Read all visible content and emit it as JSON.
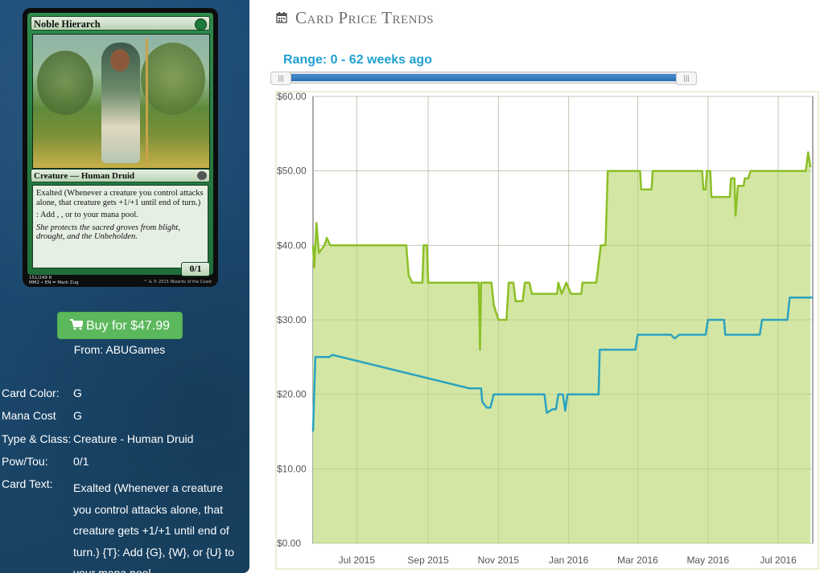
{
  "card": {
    "name": "Noble Hierarch",
    "type_line": "Creature — Human Druid",
    "rules_text": "Exalted (Whenever a creature you control attacks alone, that creature gets +1/+1 until end of turn.)",
    "mana_ability": ": Add , , or  to your mana pool.",
    "flavor": "She protects the sacred groves from blight, drought, and the Unbeholden.",
    "pt": "0/1",
    "collector_info": "151/249 R\nMM2 • EN ✒ Mark Zug",
    "copyright": "™ & © 2015 Wizards of the Coast"
  },
  "buy": {
    "label": "Buy for $47.99",
    "from": "From: ABUGames",
    "icon": "cart-icon"
  },
  "attributes": [
    {
      "label": "Card Color:",
      "value": "G"
    },
    {
      "label": "Mana Cost",
      "value": "G"
    },
    {
      "label": "Type & Class:",
      "value": "Creature - Human Druid"
    },
    {
      "label": "Pow/Tou:",
      "value": "0/1"
    },
    {
      "label": "Card Text:",
      "value": "Exalted (Whenever a creature you control attacks alone, that creature gets +1/+1 until end of turn.) {T}: Add {G}, {W}, or {U} to your mana pool."
    }
  ],
  "section_title": "Card Price Trends",
  "section_icon": "calendar-icon",
  "range_label": "Range: 0 - 62 weeks ago",
  "colors": {
    "sidebar": "#1c4a73",
    "button": "#5cb85c",
    "range": "#21a1d0",
    "green_series": "#8cbf26",
    "blue_series": "#2ba3bf"
  },
  "chart_data": {
    "type": "area",
    "x_ticks": [
      "Jul 2015",
      "Sep 2015",
      "Nov 2015",
      "Jan 2016",
      "Mar 2016",
      "May 2016",
      "Jul 2016"
    ],
    "y_ticks": [
      "$0.00",
      "$10.00",
      "$20.00",
      "$30.00",
      "$40.00",
      "$50.00",
      "$60.00"
    ],
    "ylim": [
      0,
      60
    ],
    "xlim": [
      "2015-05-24",
      "2016-07-31"
    ],
    "grid": true,
    "series": [
      {
        "color": "#8cbf26",
        "fill": true,
        "points": [
          [
            "2015-05-24",
            40
          ],
          [
            "2015-05-25",
            37
          ],
          [
            "2015-05-27",
            43
          ],
          [
            "2015-05-29",
            39
          ],
          [
            "2015-06-03",
            40
          ],
          [
            "2015-06-05",
            41
          ],
          [
            "2015-06-08",
            40
          ],
          [
            "2015-08-13",
            40
          ],
          [
            "2015-08-15",
            36
          ],
          [
            "2015-08-18",
            35
          ],
          [
            "2015-08-27",
            35
          ],
          [
            "2015-08-28",
            40
          ],
          [
            "2015-08-31",
            40
          ],
          [
            "2015-09-01",
            35
          ],
          [
            "2015-10-15",
            35
          ],
          [
            "2015-10-16",
            26
          ],
          [
            "2015-10-17",
            35
          ],
          [
            "2015-10-26",
            35
          ],
          [
            "2015-10-28",
            32
          ],
          [
            "2015-11-01",
            30
          ],
          [
            "2015-11-08",
            30
          ],
          [
            "2015-11-10",
            35
          ],
          [
            "2015-11-14",
            35
          ],
          [
            "2015-11-16",
            32.5
          ],
          [
            "2015-11-22",
            32.5
          ],
          [
            "2015-11-24",
            35
          ],
          [
            "2015-11-28",
            35
          ],
          [
            "2015-11-30",
            33.5
          ],
          [
            "2015-12-22",
            33.5
          ],
          [
            "2015-12-23",
            35
          ],
          [
            "2015-12-26",
            33.5
          ],
          [
            "2015-12-30",
            35
          ],
          [
            "2016-01-03",
            33.5
          ],
          [
            "2016-01-12",
            33.5
          ],
          [
            "2016-01-13",
            35
          ],
          [
            "2016-01-25",
            35
          ],
          [
            "2016-01-29",
            40
          ],
          [
            "2016-02-02",
            40
          ],
          [
            "2016-02-04",
            50
          ],
          [
            "2016-03-03",
            50
          ],
          [
            "2016-03-04",
            47.5
          ],
          [
            "2016-03-13",
            47.5
          ],
          [
            "2016-03-14",
            50
          ],
          [
            "2016-04-26",
            50
          ],
          [
            "2016-04-27",
            47.5
          ],
          [
            "2016-04-29",
            47.5
          ],
          [
            "2016-04-30",
            50
          ],
          [
            "2016-05-03",
            50
          ],
          [
            "2016-05-04",
            46.5
          ],
          [
            "2016-05-20",
            46.5
          ],
          [
            "2016-05-21",
            49
          ],
          [
            "2016-05-24",
            49
          ],
          [
            "2016-05-25",
            44
          ],
          [
            "2016-05-27",
            48
          ],
          [
            "2016-06-01",
            48
          ],
          [
            "2016-06-02",
            49
          ],
          [
            "2016-06-05",
            49
          ],
          [
            "2016-06-07",
            50
          ],
          [
            "2016-07-25",
            50
          ],
          [
            "2016-07-27",
            52.5
          ],
          [
            "2016-07-29",
            50.5
          ]
        ]
      },
      {
        "color": "#2ba3bf",
        "fill": false,
        "points": [
          [
            "2015-05-24",
            15
          ],
          [
            "2015-05-26",
            25
          ],
          [
            "2015-06-07",
            25
          ],
          [
            "2015-06-10",
            25.3
          ],
          [
            "2015-10-07",
            20.8
          ],
          [
            "2015-10-15",
            20.8
          ],
          [
            "2015-10-17",
            20.8
          ],
          [
            "2015-10-18",
            19
          ],
          [
            "2015-10-22",
            18.2
          ],
          [
            "2015-10-25",
            18.2
          ],
          [
            "2015-10-28",
            20
          ],
          [
            "2015-12-11",
            20
          ],
          [
            "2015-12-13",
            17.5
          ],
          [
            "2015-12-18",
            18
          ],
          [
            "2015-12-21",
            18
          ],
          [
            "2015-12-23",
            20
          ],
          [
            "2015-12-27",
            20
          ],
          [
            "2015-12-29",
            17.8
          ],
          [
            "2015-12-31",
            20
          ],
          [
            "2016-01-27",
            20
          ],
          [
            "2016-01-28",
            26
          ],
          [
            "2016-02-28",
            26
          ],
          [
            "2016-03-01",
            28
          ],
          [
            "2016-03-30",
            28
          ],
          [
            "2016-04-02",
            27.5
          ],
          [
            "2016-04-06",
            28
          ],
          [
            "2016-04-29",
            28
          ],
          [
            "2016-05-01",
            30
          ],
          [
            "2016-05-15",
            30
          ],
          [
            "2016-05-16",
            28
          ],
          [
            "2016-06-15",
            28
          ],
          [
            "2016-06-17",
            30
          ],
          [
            "2016-07-09",
            30
          ],
          [
            "2016-07-11",
            33
          ],
          [
            "2016-07-31",
            33
          ]
        ]
      }
    ]
  }
}
